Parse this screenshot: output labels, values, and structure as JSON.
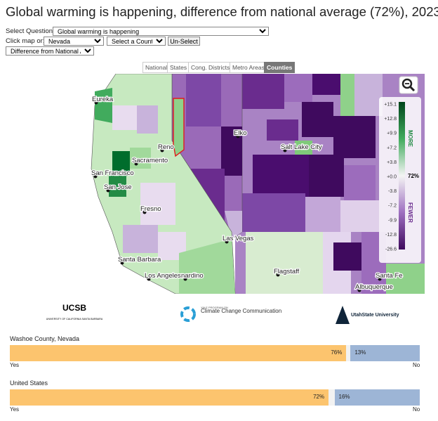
{
  "header": {
    "title": "Global warming is happening, difference from national average (72%), 2023"
  },
  "controls": {
    "question_label": "Select Question:",
    "question": "Global warming is happening",
    "click_label": "Click map or:",
    "state": "Nevada",
    "county": "Select a County",
    "unselect": "Un-Select",
    "view": "Difference from National Avg."
  },
  "tabs": [
    "National",
    "States",
    "Cong. Districts",
    "Metro Areas",
    "Counties"
  ],
  "map": {
    "cities": [
      "Eureka",
      "Reno",
      "Sacramento",
      "San Francisco",
      "San Jose",
      "Fresno",
      "Elko",
      "Salt Lake City",
      "Las Vegas",
      "Santa Barbara",
      "Los Angeles",
      "nardino",
      "Flagstaff",
      "Santa Fe",
      "Albuquerque"
    ],
    "legend": {
      "ticks": [
        "+15.1",
        "+12.8",
        "+9.9",
        "+7.2",
        "+3.8",
        "+0.0",
        "-3.8",
        "-7.2",
        "-9.9",
        "-12.8",
        "-26.6"
      ],
      "national": "72%",
      "more": "MORE",
      "fewer": "FEWER"
    }
  },
  "logos": {
    "ucsb": "UCSB",
    "ucsb_sub": "UNIVERSITY OF CALIFORNIA SANTA BARBARA",
    "yale_small": "YALE PROGRAM ON",
    "yale": "Climate Change Communication",
    "usu": "UtahState University"
  },
  "bars": [
    {
      "name": "Washoe County, Nevada",
      "yes": 76,
      "yes_label": "76%",
      "no": 13,
      "no_label": "13%",
      "yes_text": "Yes",
      "no_text": "No"
    },
    {
      "name": "United States",
      "yes": 72,
      "yes_label": "72%",
      "no": 16,
      "no_label": "16%",
      "yes_text": "Yes",
      "no_text": "No"
    }
  ]
}
